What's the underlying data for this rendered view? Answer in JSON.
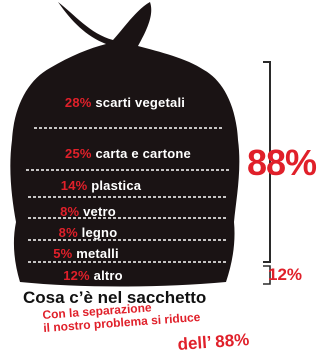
{
  "chart_data": {
    "type": "table",
    "categories": [
      "scarti vegetali",
      "carta e cartone",
      "plastica",
      "vetro",
      "legno",
      "metalli",
      "altro"
    ],
    "values": [
      28,
      25,
      14,
      8,
      8,
      5,
      12
    ],
    "labels": [
      {
        "pct": "28%",
        "name": "scarti vegetali"
      },
      {
        "pct": "25%",
        "name": "carta e cartone"
      },
      {
        "pct": "14%",
        "name": "plastica"
      },
      {
        "pct": "8%",
        "name": "vetro"
      },
      {
        "pct": "8%",
        "name": "legno"
      },
      {
        "pct": "5%",
        "name": "metalli"
      },
      {
        "pct": "12%",
        "name": "altro"
      }
    ],
    "bracket_totals": [
      {
        "label": "88%",
        "value": 88
      },
      {
        "label": "12%",
        "value": 12
      }
    ]
  },
  "caption": "Cosa c’è nel sacchetto",
  "subcaption_line1": "Con la separazione",
  "subcaption_line2": "il nostro problema si riduce",
  "subcaption_highlight": "dell’ 88%",
  "colors": {
    "bag": "#1a1314",
    "accent": "#e0202a",
    "bracket": "#2a2a2a",
    "divider": "#ffffff"
  }
}
